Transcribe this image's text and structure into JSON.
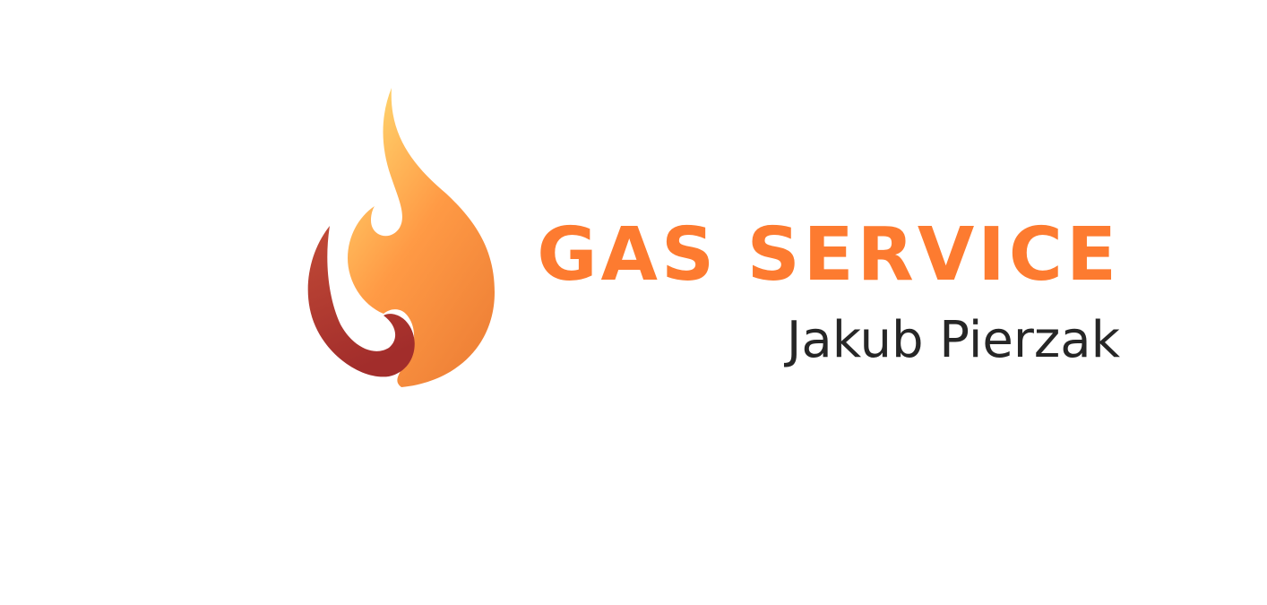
{
  "logo": {
    "title": "GAS SERVICE",
    "subtitle": "Jakub Pierzak",
    "icon": "flame-icon"
  },
  "colors": {
    "background": "#ffffff",
    "title": "#fd7b30",
    "subtitle": "#262626",
    "flame_light": "#ffd06a",
    "flame_mid": "#ff9a45",
    "flame_dark": "#f08338",
    "swirl_top": "#c24b37",
    "swirl_bottom": "#a22d2b"
  }
}
